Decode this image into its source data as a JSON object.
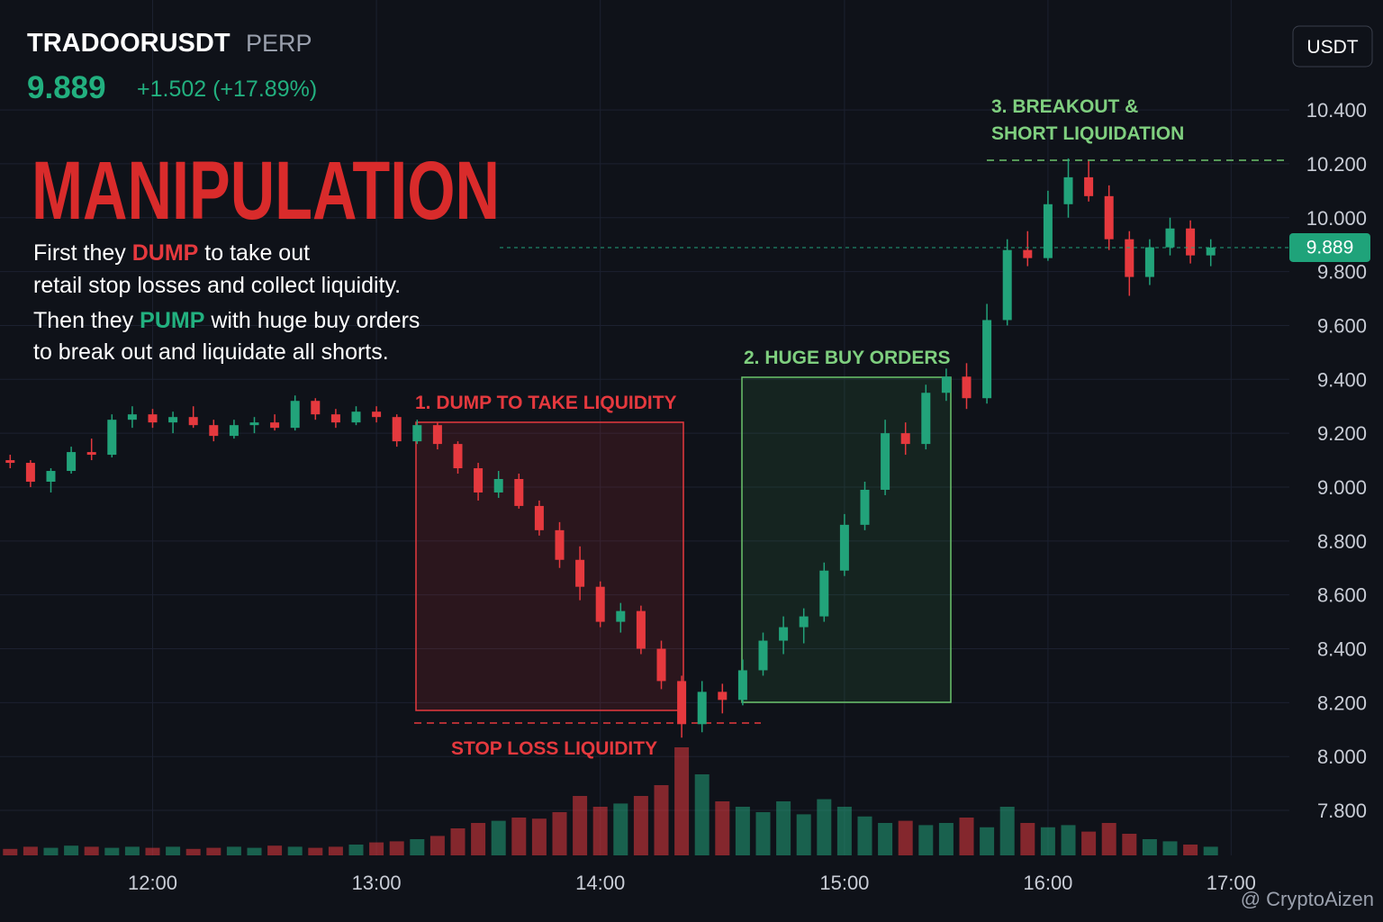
{
  "chart_data": {
    "type": "candlestick",
    "symbol": "TRADOORUSDT",
    "contract": "PERP",
    "last_price": {
      "value": 9.889,
      "label": "9.889"
    },
    "change": "+1.502 (+17.89%)",
    "title": "MANIPULATION",
    "description": [
      [
        "First they ",
        "DUMP",
        " to take out"
      ],
      [
        "retail stop losses and collect liquidity."
      ],
      [
        "Then they ",
        "PUMP",
        " with huge buy orders"
      ],
      [
        "to break out and liquidate all shorts."
      ]
    ],
    "annotations": [
      "1. DUMP TO TAKE LIQUIDITY",
      "STOP LOSS LIQUIDITY",
      "2. HUGE BUY ORDERS",
      "3. BREAKOUT &",
      "SHORT LIQUIDATION"
    ],
    "currency": "USDT",
    "watermark": "@ CryptoAizen",
    "up_color": "#22a37a",
    "down_color": "#e5393e",
    "grid": true,
    "categories": [
      null,
      null,
      null,
      null,
      null,
      null,
      null,
      "12:00",
      null,
      null,
      null,
      null,
      null,
      null,
      null,
      null,
      null,
      null,
      "13:00",
      null,
      null,
      null,
      null,
      null,
      null,
      null,
      null,
      null,
      null,
      "14:00",
      null,
      null,
      null,
      null,
      null,
      null,
      null,
      null,
      null,
      null,
      null,
      "15:00",
      null,
      null,
      null,
      null,
      null,
      null,
      null,
      null,
      null,
      "16:00",
      null,
      null,
      null,
      null,
      null,
      null,
      null,
      null,
      "17:00",
      null,
      null
    ],
    "ohlc": [
      [
        9.1,
        9.12,
        9.07,
        9.09
      ],
      [
        9.09,
        9.1,
        9.0,
        9.02
      ],
      [
        9.02,
        9.07,
        8.98,
        9.06
      ],
      [
        9.06,
        9.15,
        9.05,
        9.13
      ],
      [
        9.13,
        9.18,
        9.1,
        9.12
      ],
      [
        9.12,
        9.27,
        9.11,
        9.25
      ],
      [
        9.25,
        9.3,
        9.22,
        9.27
      ],
      [
        9.27,
        9.29,
        9.22,
        9.24
      ],
      [
        9.24,
        9.28,
        9.2,
        9.26
      ],
      [
        9.26,
        9.3,
        9.22,
        9.23
      ],
      [
        9.23,
        9.25,
        9.17,
        9.19
      ],
      [
        9.19,
        9.25,
        9.18,
        9.23
      ],
      [
        9.23,
        9.26,
        9.2,
        9.24
      ],
      [
        9.24,
        9.27,
        9.21,
        9.22
      ],
      [
        9.22,
        9.34,
        9.21,
        9.32
      ],
      [
        9.32,
        9.33,
        9.25,
        9.27
      ],
      [
        9.27,
        9.29,
        9.22,
        9.24
      ],
      [
        9.24,
        9.3,
        9.23,
        9.28
      ],
      [
        9.28,
        9.3,
        9.24,
        9.26
      ],
      [
        9.26,
        9.27,
        9.15,
        9.17
      ],
      [
        9.17,
        9.25,
        9.16,
        9.23
      ],
      [
        9.23,
        9.24,
        9.14,
        9.16
      ],
      [
        9.16,
        9.17,
        9.05,
        9.07
      ],
      [
        9.07,
        9.09,
        8.95,
        8.98
      ],
      [
        8.98,
        9.06,
        8.96,
        9.03
      ],
      [
        9.03,
        9.05,
        8.92,
        8.93
      ],
      [
        8.93,
        8.95,
        8.82,
        8.84
      ],
      [
        8.84,
        8.87,
        8.7,
        8.73
      ],
      [
        8.73,
        8.78,
        8.58,
        8.63
      ],
      [
        8.63,
        8.65,
        8.48,
        8.5
      ],
      [
        8.5,
        8.57,
        8.46,
        8.54
      ],
      [
        8.54,
        8.56,
        8.38,
        8.4
      ],
      [
        8.4,
        8.43,
        8.25,
        8.28
      ],
      [
        8.28,
        8.3,
        8.07,
        8.12
      ],
      [
        8.12,
        8.28,
        8.09,
        8.24
      ],
      [
        8.24,
        8.27,
        8.16,
        8.21
      ],
      [
        8.21,
        8.36,
        8.19,
        8.32
      ],
      [
        8.32,
        8.46,
        8.3,
        8.43
      ],
      [
        8.43,
        8.52,
        8.38,
        8.48
      ],
      [
        8.48,
        8.55,
        8.42,
        8.52
      ],
      [
        8.52,
        8.72,
        8.5,
        8.69
      ],
      [
        8.69,
        8.9,
        8.67,
        8.86
      ],
      [
        8.86,
        9.02,
        8.84,
        8.99
      ],
      [
        8.99,
        9.25,
        8.97,
        9.2
      ],
      [
        9.2,
        9.24,
        9.12,
        9.16
      ],
      [
        9.16,
        9.38,
        9.14,
        9.35
      ],
      [
        9.35,
        9.44,
        9.32,
        9.41
      ],
      [
        9.41,
        9.46,
        9.29,
        9.33
      ],
      [
        9.33,
        9.68,
        9.31,
        9.62
      ],
      [
        9.62,
        9.92,
        9.6,
        9.88
      ],
      [
        9.88,
        9.95,
        9.82,
        9.85
      ],
      [
        9.85,
        10.1,
        9.84,
        10.05
      ],
      [
        10.05,
        10.22,
        10.0,
        10.15
      ],
      [
        10.15,
        10.21,
        10.06,
        10.08
      ],
      [
        10.08,
        10.12,
        9.88,
        9.92
      ],
      [
        9.92,
        9.95,
        9.71,
        9.78
      ],
      [
        9.78,
        9.92,
        9.75,
        9.89
      ],
      [
        9.89,
        10.0,
        9.86,
        9.96
      ],
      [
        9.96,
        9.99,
        9.83,
        9.86
      ],
      [
        9.86,
        9.92,
        9.82,
        9.889
      ],
      null,
      null,
      null
    ],
    "volume": [
      0.6,
      0.8,
      0.7,
      0.9,
      0.8,
      0.7,
      0.8,
      0.7,
      0.8,
      0.6,
      0.7,
      0.8,
      0.7,
      0.9,
      0.8,
      0.7,
      0.8,
      1.0,
      1.2,
      1.3,
      1.5,
      1.8,
      2.5,
      3.0,
      3.2,
      3.5,
      3.4,
      4.0,
      5.5,
      4.5,
      4.8,
      5.5,
      6.5,
      10,
      7.5,
      5.0,
      4.5,
      4.0,
      5.0,
      3.8,
      5.2,
      4.5,
      3.6,
      3.0,
      3.2,
      2.8,
      3.0,
      3.5,
      2.6,
      4.5,
      3.0,
      2.6,
      2.8,
      2.2,
      3.0,
      2.0,
      1.5,
      1.3,
      1.0,
      0.8,
      null,
      null,
      null
    ],
    "volume_lim": [
      0,
      10
    ],
    "ylim": [
      7.633,
      10.808
    ],
    "yticks": [
      {
        "value": 7.8,
        "label": "7.800"
      },
      {
        "value": 8.0,
        "label": "8.000"
      },
      {
        "value": 8.2,
        "label": "8.200"
      },
      {
        "value": 8.4,
        "label": "8.400"
      },
      {
        "value": 8.6,
        "label": "8.600"
      },
      {
        "value": 8.8,
        "label": "8.800"
      },
      {
        "value": 9.0,
        "label": "9.000"
      },
      {
        "value": 9.2,
        "label": "9.200"
      },
      {
        "value": 9.4,
        "label": "9.400"
      },
      {
        "value": 9.6,
        "label": "9.600"
      },
      {
        "value": 9.8,
        "label": "9.800"
      },
      {
        "value": 10.0,
        "label": "10.000"
      },
      {
        "value": 10.2,
        "label": "10.200"
      },
      {
        "value": 10.4,
        "label": "10.400"
      }
    ]
  }
}
